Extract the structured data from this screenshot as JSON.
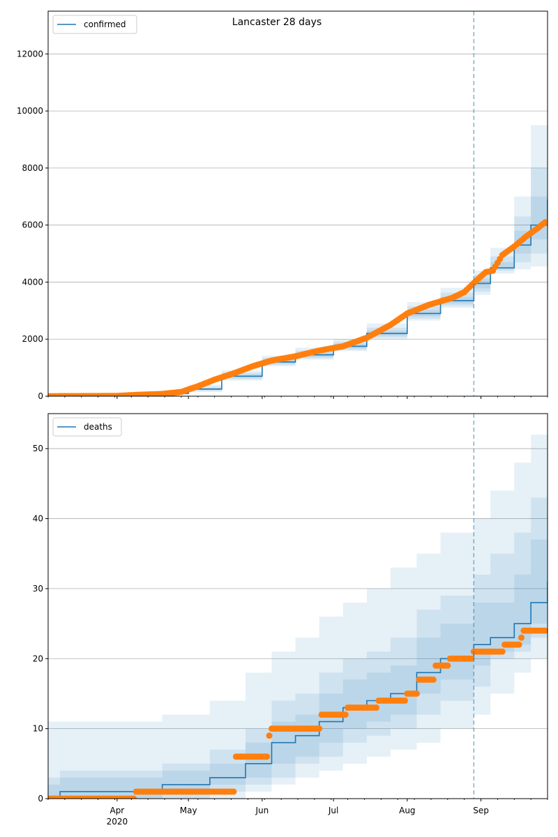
{
  "title": "Lancaster 28 days",
  "colors": {
    "model": "#1f77b4",
    "observed": "#ff7f0e",
    "band": "#1f77b4",
    "grid": "#b0b0b0",
    "forecast_line": "#1f77b4"
  },
  "x_axis": {
    "start": "2020-03-03",
    "end": "2020-09-29",
    "month_ticks": [
      {
        "date": "2020-04-01",
        "label": "Apr",
        "sublabel": "2020"
      },
      {
        "date": "2020-05-01",
        "label": "May",
        "sublabel": ""
      },
      {
        "date": "2020-06-01",
        "label": "Jun",
        "sublabel": ""
      },
      {
        "date": "2020-07-01",
        "label": "Jul",
        "sublabel": ""
      },
      {
        "date": "2020-08-01",
        "label": "Aug",
        "sublabel": ""
      },
      {
        "date": "2020-09-01",
        "label": "Sep",
        "sublabel": ""
      }
    ],
    "forecast_date": "2020-08-29"
  },
  "chart_data": [
    {
      "type": "line",
      "legend": "confirmed",
      "legend_position": "top-left",
      "grid": "y",
      "ylim": [
        0,
        13500
      ],
      "yticks": [
        0,
        2000,
        4000,
        6000,
        8000,
        10000,
        12000
      ],
      "model_series": [
        {
          "date": "2020-03-03",
          "value": 0
        },
        {
          "date": "2020-04-05",
          "value": 20
        },
        {
          "date": "2020-04-25",
          "value": 100
        },
        {
          "date": "2020-05-01",
          "value": 250
        },
        {
          "date": "2020-05-15",
          "value": 700
        },
        {
          "date": "2020-06-01",
          "value": 1200
        },
        {
          "date": "2020-06-15",
          "value": 1450
        },
        {
          "date": "2020-07-01",
          "value": 1750
        },
        {
          "date": "2020-07-15",
          "value": 2200
        },
        {
          "date": "2020-08-01",
          "value": 2900
        },
        {
          "date": "2020-08-15",
          "value": 3350
        },
        {
          "date": "2020-08-29",
          "value": 3950
        },
        {
          "date": "2020-09-05",
          "value": 4500
        },
        {
          "date": "2020-09-15",
          "value": 5300
        },
        {
          "date": "2020-09-22",
          "value": 6000
        },
        {
          "date": "2020-09-29",
          "value": 6900
        }
      ],
      "bands": [
        {
          "level": "outer",
          "lower": [
            0,
            0,
            40,
            150,
            550,
            1050,
            1280,
            1580,
            2000,
            2650,
            3100,
            3550,
            4300,
            4450,
            4550,
            4650
          ],
          "upper": [
            0,
            80,
            200,
            400,
            900,
            1420,
            1700,
            2000,
            2550,
            3300,
            3800,
            4400,
            5200,
            7000,
            9500,
            13500
          ]
        },
        {
          "level": "middle",
          "lower": [
            0,
            0,
            60,
            190,
            600,
            1100,
            1330,
            1630,
            2060,
            2720,
            3170,
            3660,
            4400,
            4700,
            5000,
            5300
          ],
          "upper": [
            0,
            50,
            150,
            330,
            820,
            1340,
            1600,
            1900,
            2400,
            3150,
            3630,
            4250,
            4900,
            6300,
            8000,
            11000
          ]
        },
        {
          "level": "inner",
          "lower": [
            0,
            5,
            80,
            220,
            650,
            1150,
            1380,
            1680,
            2120,
            2800,
            3250,
            3780,
            4450,
            5000,
            5500,
            6000
          ],
          "upper": [
            0,
            35,
            120,
            280,
            760,
            1270,
            1520,
            1830,
            2300,
            3020,
            3480,
            4120,
            4700,
            5800,
            7000,
            8700
          ]
        }
      ],
      "observed": [
        {
          "date": "2020-03-03",
          "value": 0
        },
        {
          "date": "2020-04-01",
          "value": 10
        },
        {
          "date": "2020-04-10",
          "value": 50
        },
        {
          "date": "2020-04-20",
          "value": 80
        },
        {
          "date": "2020-04-28",
          "value": 150
        },
        {
          "date": "2020-05-05",
          "value": 350
        },
        {
          "date": "2020-05-12",
          "value": 580
        },
        {
          "date": "2020-05-20",
          "value": 800
        },
        {
          "date": "2020-05-28",
          "value": 1050
        },
        {
          "date": "2020-06-05",
          "value": 1250
        },
        {
          "date": "2020-06-15",
          "value": 1400
        },
        {
          "date": "2020-06-25",
          "value": 1600
        },
        {
          "date": "2020-07-05",
          "value": 1750
        },
        {
          "date": "2020-07-15",
          "value": 2050
        },
        {
          "date": "2020-07-25",
          "value": 2500
        },
        {
          "date": "2020-08-01",
          "value": 2900
        },
        {
          "date": "2020-08-10",
          "value": 3200
        },
        {
          "date": "2020-08-20",
          "value": 3450
        },
        {
          "date": "2020-08-25",
          "value": 3650
        },
        {
          "date": "2020-08-30",
          "value": 4050
        },
        {
          "date": "2020-09-03",
          "value": 4350
        },
        {
          "date": "2020-09-06",
          "value": 4400
        },
        {
          "date": "2020-09-10",
          "value": 4950
        },
        {
          "date": "2020-09-15",
          "value": 5250
        },
        {
          "date": "2020-09-20",
          "value": 5600
        },
        {
          "date": "2020-09-25",
          "value": 5900
        },
        {
          "date": "2020-09-28",
          "value": 6100
        }
      ]
    },
    {
      "type": "line",
      "legend": "deaths",
      "legend_position": "top-left",
      "grid": "y",
      "ylim": [
        0,
        55
      ],
      "yticks": [
        0,
        10,
        20,
        30,
        40,
        50
      ],
      "model_series": [
        {
          "date": "2020-03-03",
          "value": 0
        },
        {
          "date": "2020-03-08",
          "value": 1
        },
        {
          "date": "2020-04-20",
          "value": 2
        },
        {
          "date": "2020-05-10",
          "value": 3
        },
        {
          "date": "2020-05-25",
          "value": 5
        },
        {
          "date": "2020-06-05",
          "value": 8
        },
        {
          "date": "2020-06-15",
          "value": 9
        },
        {
          "date": "2020-06-25",
          "value": 11
        },
        {
          "date": "2020-07-05",
          "value": 13
        },
        {
          "date": "2020-07-15",
          "value": 14
        },
        {
          "date": "2020-07-25",
          "value": 15
        },
        {
          "date": "2020-08-05",
          "value": 18
        },
        {
          "date": "2020-08-15",
          "value": 20
        },
        {
          "date": "2020-08-29",
          "value": 22
        },
        {
          "date": "2020-09-05",
          "value": 23
        },
        {
          "date": "2020-09-15",
          "value": 25
        },
        {
          "date": "2020-09-22",
          "value": 28
        },
        {
          "date": "2020-09-29",
          "value": 31
        }
      ],
      "bands": [
        {
          "level": "outer",
          "lower": [
            0,
            0,
            0,
            0,
            1,
            2,
            3,
            4,
            5,
            6,
            7,
            8,
            10,
            12,
            15,
            18,
            20,
            22
          ],
          "upper": [
            11,
            11,
            12,
            14,
            18,
            21,
            23,
            26,
            28,
            30,
            33,
            35,
            38,
            40,
            44,
            48,
            52,
            54
          ]
        },
        {
          "level": "middle",
          "lower": [
            0,
            0,
            0,
            1,
            2,
            3,
            5,
            6,
            8,
            9,
            10,
            12,
            14,
            16,
            20,
            21,
            23,
            24
          ],
          "upper": [
            3,
            4,
            5,
            7,
            10,
            14,
            15,
            18,
            20,
            21,
            23,
            27,
            29,
            32,
            35,
            38,
            43,
            42
          ]
        },
        {
          "level": "inner",
          "lower": [
            0,
            0,
            1,
            2,
            3,
            5,
            6,
            8,
            10,
            11,
            12,
            15,
            17,
            19,
            21,
            22,
            25,
            26
          ],
          "upper": [
            2,
            3,
            4,
            5,
            8,
            11,
            12,
            15,
            17,
            18,
            19,
            23,
            25,
            28,
            28,
            32,
            37,
            36
          ]
        }
      ],
      "observed": [
        {
          "date": "2020-03-03",
          "value": 0
        },
        {
          "date": "2020-04-08",
          "value": 0
        },
        {
          "date": "2020-04-09",
          "value": 1
        },
        {
          "date": "2020-05-20",
          "value": 1
        },
        {
          "date": "2020-05-21",
          "value": 6
        },
        {
          "date": "2020-06-03",
          "value": 6
        },
        {
          "date": "2020-06-04",
          "value": 9
        },
        {
          "date": "2020-06-05",
          "value": 10
        },
        {
          "date": "2020-06-25",
          "value": 10
        },
        {
          "date": "2020-06-26",
          "value": 12
        },
        {
          "date": "2020-07-06",
          "value": 12
        },
        {
          "date": "2020-07-07",
          "value": 13
        },
        {
          "date": "2020-07-19",
          "value": 13
        },
        {
          "date": "2020-07-20",
          "value": 14
        },
        {
          "date": "2020-07-31",
          "value": 14
        },
        {
          "date": "2020-08-01",
          "value": 15
        },
        {
          "date": "2020-08-05",
          "value": 15
        },
        {
          "date": "2020-08-06",
          "value": 17
        },
        {
          "date": "2020-08-12",
          "value": 17
        },
        {
          "date": "2020-08-13",
          "value": 19
        },
        {
          "date": "2020-08-18",
          "value": 19
        },
        {
          "date": "2020-08-19",
          "value": 20
        },
        {
          "date": "2020-08-28",
          "value": 20
        },
        {
          "date": "2020-08-29",
          "value": 21
        },
        {
          "date": "2020-09-10",
          "value": 21
        },
        {
          "date": "2020-09-11",
          "value": 22
        },
        {
          "date": "2020-09-17",
          "value": 22
        },
        {
          "date": "2020-09-18",
          "value": 23
        },
        {
          "date": "2020-09-19",
          "value": 24
        },
        {
          "date": "2020-09-28",
          "value": 24
        }
      ]
    }
  ]
}
